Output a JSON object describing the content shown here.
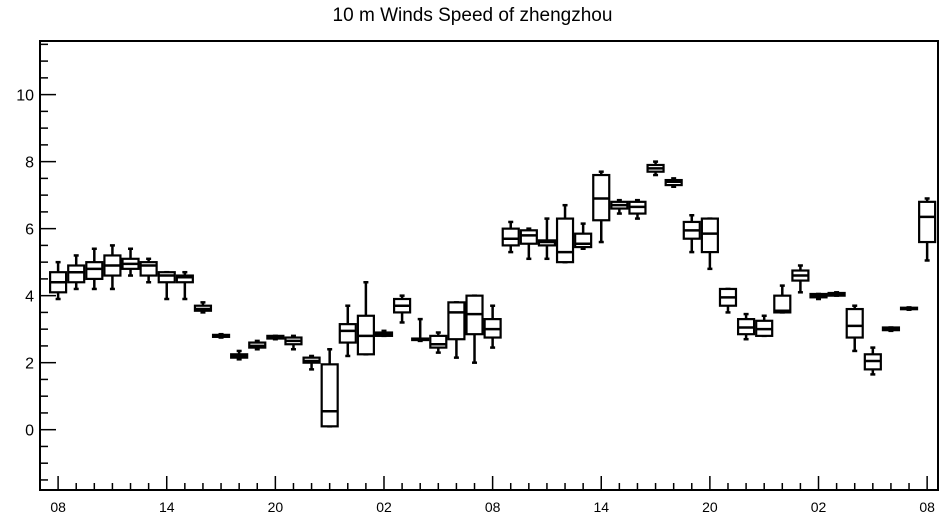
{
  "chart_data": {
    "type": "boxplot",
    "title": "10 m Winds Speed of zhengzhou",
    "xlabel": "",
    "ylabel": "",
    "ylim": [
      -1.8,
      11.6
    ],
    "y_ticks": [
      "0",
      "2",
      "4",
      "6",
      "8",
      "10"
    ],
    "x_ticks": [
      "08",
      "14",
      "20",
      "02",
      "08",
      "14",
      "20",
      "02",
      "08"
    ],
    "x_tick_hours": [
      0,
      6,
      12,
      18,
      24,
      30,
      36,
      42,
      48
    ],
    "xlim_hours": [
      -1,
      48.6
    ],
    "grid": false,
    "legend": "none",
    "box_color": "#000000",
    "boxes": [
      {
        "hour": 0,
        "whisker_low": 3.9,
        "q1": 4.1,
        "median": 4.4,
        "q3": 4.7,
        "whisker_high": 5.0
      },
      {
        "hour": 1,
        "whisker_low": 4.2,
        "q1": 4.4,
        "median": 4.7,
        "q3": 4.9,
        "whisker_high": 5.2
      },
      {
        "hour": 2,
        "whisker_low": 4.2,
        "q1": 4.5,
        "median": 4.8,
        "q3": 5.0,
        "whisker_high": 5.4
      },
      {
        "hour": 3,
        "whisker_low": 4.2,
        "q1": 4.6,
        "median": 4.9,
        "q3": 5.2,
        "whisker_high": 5.5
      },
      {
        "hour": 4,
        "whisker_low": 4.6,
        "q1": 4.8,
        "median": 4.95,
        "q3": 5.1,
        "whisker_high": 5.4
      },
      {
        "hour": 5,
        "whisker_low": 4.4,
        "q1": 4.6,
        "median": 4.9,
        "q3": 5.0,
        "whisker_high": 5.1
      },
      {
        "hour": 6,
        "whisker_low": 3.9,
        "q1": 4.4,
        "median": 4.6,
        "q3": 4.7,
        "whisker_high": 4.7
      },
      {
        "hour": 7,
        "whisker_low": 3.9,
        "q1": 4.4,
        "median": 4.55,
        "q3": 4.6,
        "whisker_high": 4.7
      },
      {
        "hour": 8,
        "whisker_low": 3.5,
        "q1": 3.55,
        "median": 3.6,
        "q3": 3.7,
        "whisker_high": 3.8
      },
      {
        "hour": 9,
        "whisker_low": 2.75,
        "q1": 2.77,
        "median": 2.8,
        "q3": 2.83,
        "whisker_high": 2.85
      },
      {
        "hour": 10,
        "whisker_low": 2.1,
        "q1": 2.15,
        "median": 2.2,
        "q3": 2.25,
        "whisker_high": 2.35
      },
      {
        "hour": 11,
        "whisker_low": 2.4,
        "q1": 2.45,
        "median": 2.5,
        "q3": 2.6,
        "whisker_high": 2.65
      },
      {
        "hour": 12,
        "whisker_low": 2.7,
        "q1": 2.72,
        "median": 2.75,
        "q3": 2.8,
        "whisker_high": 2.8
      },
      {
        "hour": 13,
        "whisker_low": 2.4,
        "q1": 2.55,
        "median": 2.65,
        "q3": 2.75,
        "whisker_high": 2.8
      },
      {
        "hour": 14,
        "whisker_low": 1.8,
        "q1": 2.0,
        "median": 2.05,
        "q3": 2.15,
        "whisker_high": 2.2
      },
      {
        "hour": 15,
        "whisker_low": 0.1,
        "q1": 0.1,
        "median": 0.55,
        "q3": 1.95,
        "whisker_high": 2.4
      },
      {
        "hour": 16,
        "whisker_low": 2.2,
        "q1": 2.6,
        "median": 2.95,
        "q3": 3.15,
        "whisker_high": 3.7
      },
      {
        "hour": 17,
        "whisker_low": 2.25,
        "q1": 2.25,
        "median": 2.8,
        "q3": 3.4,
        "whisker_high": 4.4
      },
      {
        "hour": 18,
        "whisker_low": 2.8,
        "q1": 2.8,
        "median": 2.85,
        "q3": 2.9,
        "whisker_high": 2.95
      },
      {
        "hour": 19,
        "whisker_low": 3.2,
        "q1": 3.5,
        "median": 3.7,
        "q3": 3.9,
        "whisker_high": 4.0
      },
      {
        "hour": 20,
        "whisker_low": 2.65,
        "q1": 2.68,
        "median": 2.7,
        "q3": 2.72,
        "whisker_high": 3.3
      },
      {
        "hour": 21,
        "whisker_low": 2.3,
        "q1": 2.45,
        "median": 2.55,
        "q3": 2.8,
        "whisker_high": 2.9
      },
      {
        "hour": 22,
        "whisker_low": 2.15,
        "q1": 2.7,
        "median": 3.5,
        "q3": 3.8,
        "whisker_high": 3.8
      },
      {
        "hour": 23,
        "whisker_low": 2.0,
        "q1": 2.85,
        "median": 3.45,
        "q3": 4.0,
        "whisker_high": 4.0
      },
      {
        "hour": 24,
        "whisker_low": 2.45,
        "q1": 2.75,
        "median": 3.0,
        "q3": 3.3,
        "whisker_high": 3.7
      },
      {
        "hour": 25,
        "whisker_low": 5.3,
        "q1": 5.5,
        "median": 5.7,
        "q3": 6.0,
        "whisker_high": 6.2
      },
      {
        "hour": 26,
        "whisker_low": 5.1,
        "q1": 5.55,
        "median": 5.8,
        "q3": 5.95,
        "whisker_high": 6.0
      },
      {
        "hour": 27,
        "whisker_low": 5.1,
        "q1": 5.5,
        "median": 5.6,
        "q3": 5.65,
        "whisker_high": 6.3
      },
      {
        "hour": 28,
        "whisker_low": 5.0,
        "q1": 5.0,
        "median": 5.3,
        "q3": 6.3,
        "whisker_high": 6.7
      },
      {
        "hour": 29,
        "whisker_low": 5.4,
        "q1": 5.45,
        "median": 5.55,
        "q3": 5.85,
        "whisker_high": 6.15
      },
      {
        "hour": 30,
        "whisker_low": 5.6,
        "q1": 6.25,
        "median": 6.9,
        "q3": 7.6,
        "whisker_high": 7.7
      },
      {
        "hour": 31,
        "whisker_low": 6.45,
        "q1": 6.6,
        "median": 6.7,
        "q3": 6.8,
        "whisker_high": 6.85
      },
      {
        "hour": 32,
        "whisker_low": 6.3,
        "q1": 6.45,
        "median": 6.65,
        "q3": 6.8,
        "whisker_high": 6.85
      },
      {
        "hour": 33,
        "whisker_low": 7.6,
        "q1": 7.7,
        "median": 7.8,
        "q3": 7.9,
        "whisker_high": 8.0
      },
      {
        "hour": 34,
        "whisker_low": 7.25,
        "q1": 7.3,
        "median": 7.4,
        "q3": 7.45,
        "whisker_high": 7.5
      },
      {
        "hour": 35,
        "whisker_low": 5.3,
        "q1": 5.7,
        "median": 5.95,
        "q3": 6.2,
        "whisker_high": 6.4
      },
      {
        "hour": 36,
        "whisker_low": 4.8,
        "q1": 5.3,
        "median": 5.85,
        "q3": 6.3,
        "whisker_high": 6.3
      },
      {
        "hour": 37,
        "whisker_low": 3.5,
        "q1": 3.7,
        "median": 3.95,
        "q3": 4.2,
        "whisker_high": 4.2
      },
      {
        "hour": 38,
        "whisker_low": 2.7,
        "q1": 2.85,
        "median": 3.05,
        "q3": 3.3,
        "whisker_high": 3.45
      },
      {
        "hour": 39,
        "whisker_low": 2.8,
        "q1": 2.8,
        "median": 3.0,
        "q3": 3.25,
        "whisker_high": 3.4
      },
      {
        "hour": 40,
        "whisker_low": 3.5,
        "q1": 3.5,
        "median": 3.55,
        "q3": 4.0,
        "whisker_high": 4.3
      },
      {
        "hour": 41,
        "whisker_low": 4.1,
        "q1": 4.45,
        "median": 4.6,
        "q3": 4.75,
        "whisker_high": 4.9
      },
      {
        "hour": 42,
        "whisker_low": 3.9,
        "q1": 3.95,
        "median": 4.0,
        "q3": 4.05,
        "whisker_high": 4.05
      },
      {
        "hour": 43,
        "whisker_low": 4.0,
        "q1": 4.0,
        "median": 4.05,
        "q3": 4.08,
        "whisker_high": 4.1
      },
      {
        "hour": 44,
        "whisker_low": 2.35,
        "q1": 2.75,
        "median": 3.1,
        "q3": 3.6,
        "whisker_high": 3.7
      },
      {
        "hour": 45,
        "whisker_low": 1.65,
        "q1": 1.8,
        "median": 2.05,
        "q3": 2.25,
        "whisker_high": 2.45
      },
      {
        "hour": 46,
        "whisker_low": 2.95,
        "q1": 2.97,
        "median": 3.0,
        "q3": 3.05,
        "whisker_high": 3.05
      },
      {
        "hour": 47,
        "whisker_low": 3.58,
        "q1": 3.6,
        "median": 3.62,
        "q3": 3.64,
        "whisker_high": 3.65
      },
      {
        "hour": 48,
        "whisker_low": 5.05,
        "q1": 5.6,
        "median": 6.35,
        "q3": 6.8,
        "whisker_high": 6.9
      }
    ]
  }
}
